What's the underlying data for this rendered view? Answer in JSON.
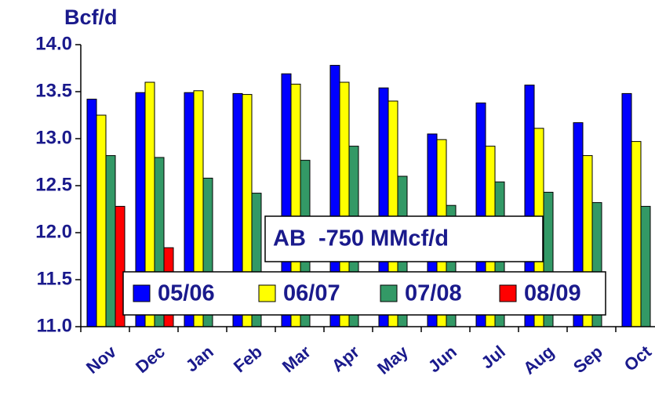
{
  "chart_data": {
    "type": "bar",
    "y_label": "Bcf/d",
    "annotation": "AB  -750 MMcf/d",
    "categories": [
      "Nov",
      "Dec",
      "Jan",
      "Feb",
      "Mar",
      "Apr",
      "May",
      "Jun",
      "Jul",
      "Aug",
      "Sep",
      "Oct"
    ],
    "series": [
      {
        "name": "05/06",
        "color": "#0000ff",
        "values": [
          13.42,
          13.49,
          13.49,
          13.48,
          13.69,
          13.78,
          13.54,
          13.05,
          13.38,
          13.57,
          13.17,
          13.48
        ]
      },
      {
        "name": "06/07",
        "color": "#ffff00",
        "values": [
          13.25,
          13.6,
          13.51,
          13.47,
          13.58,
          13.6,
          13.4,
          12.99,
          12.92,
          13.11,
          12.82,
          12.97
        ]
      },
      {
        "name": "07/08",
        "color": "#339966",
        "values": [
          12.82,
          12.8,
          12.58,
          12.42,
          12.77,
          12.92,
          12.6,
          12.29,
          12.54,
          12.43,
          12.32,
          12.28
        ]
      },
      {
        "name": "08/09",
        "color": "#ff0000",
        "values": [
          12.28,
          11.84,
          null,
          null,
          null,
          null,
          null,
          null,
          null,
          null,
          null,
          null
        ]
      }
    ],
    "ylim": [
      11.0,
      14.0
    ],
    "yticks": [
      {
        "value": 11.0,
        "label": "11.0"
      },
      {
        "value": 11.5,
        "label": "11.5"
      },
      {
        "value": 12.0,
        "label": "12.0"
      },
      {
        "value": 12.5,
        "label": "12.5"
      },
      {
        "value": 13.0,
        "label": "13.0"
      },
      {
        "value": 13.5,
        "label": "13.5"
      },
      {
        "value": 14.0,
        "label": "14.0"
      }
    ]
  }
}
